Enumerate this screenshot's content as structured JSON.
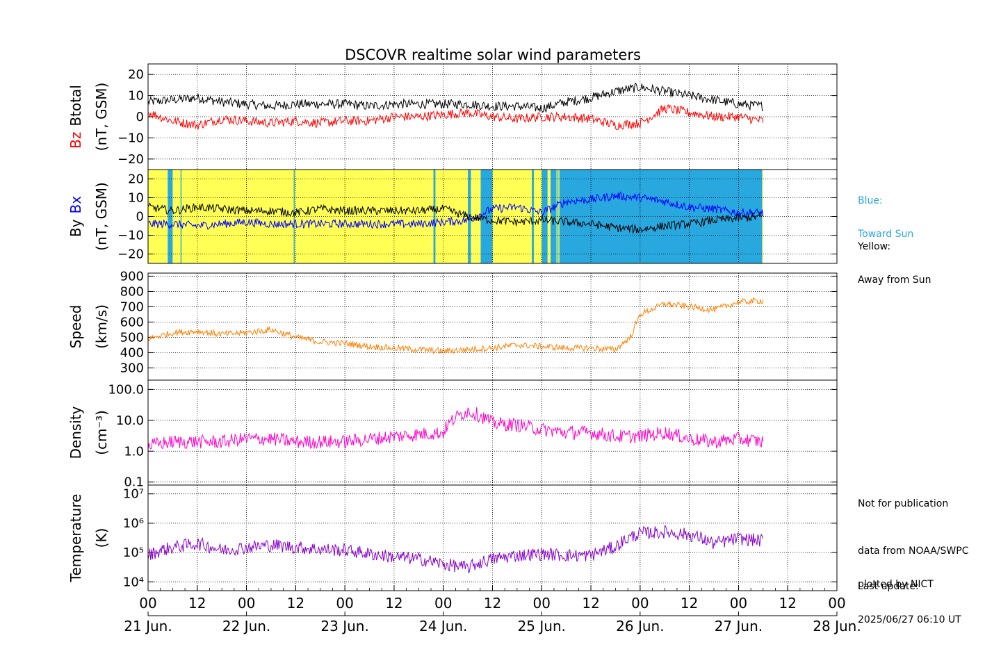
{
  "chart_data": {
    "type": "line",
    "title": "DSCOVR realtime solar wind parameters",
    "x_axis": {
      "hour_ticks": [
        "00",
        "12",
        "00",
        "12",
        "00",
        "12",
        "00",
        "12",
        "00",
        "12",
        "00",
        "12",
        "00",
        "12",
        "00"
      ],
      "date_labels": [
        "21 Jun.",
        "22 Jun.",
        "23 Jun.",
        "24 Jun.",
        "25 Jun.",
        "26 Jun.",
        "27 Jun.",
        "28 Jun."
      ],
      "range_days": [
        0,
        7
      ],
      "data_end_day": 6.25
    },
    "panels": [
      {
        "id": "mag",
        "ylabel_parts": [
          {
            "text": "Bz",
            "color": "#ff0000"
          },
          {
            "text": "Btotal",
            "color": "#000000"
          }
        ],
        "yunits": "(nT, GSM)",
        "ylim": [
          -25,
          25
        ],
        "ticks": [
          "20",
          "10",
          "0",
          "−10",
          "−20"
        ],
        "series": [
          {
            "name": "Btotal",
            "color": "#000000",
            "x": [
              0,
              0.25,
              0.5,
              0.75,
              1,
              1.25,
              1.5,
              1.75,
              2,
              2.25,
              2.5,
              2.75,
              3,
              3.25,
              3.5,
              3.75,
              4,
              4.25,
              4.5,
              4.75,
              5,
              5.25,
              5.5,
              5.75,
              6,
              6.25
            ],
            "y": [
              7,
              8,
              9,
              7,
              6,
              5,
              6,
              6,
              6,
              5,
              6,
              6,
              6,
              6,
              5,
              5,
              4,
              7,
              9,
              12,
              14,
              12,
              10,
              8,
              6,
              5
            ]
          },
          {
            "name": "Bz",
            "color": "#ff0000",
            "x": [
              0,
              0.25,
              0.5,
              0.75,
              1,
              1.25,
              1.5,
              1.75,
              2,
              2.25,
              2.5,
              2.75,
              3,
              3.25,
              3.5,
              3.75,
              4,
              4.25,
              4.5,
              4.75,
              5,
              5.25,
              5.5,
              5.75,
              6,
              6.25
            ],
            "y": [
              2,
              -2,
              -4,
              -1,
              -2,
              -3,
              -2,
              -3,
              -2,
              -2,
              0,
              0,
              1,
              2,
              0,
              -1,
              0,
              0,
              -1,
              -4,
              -3,
              4,
              2,
              0,
              0,
              -2
            ]
          }
        ]
      },
      {
        "id": "imf",
        "ylabel_parts": [
          {
            "text": "By",
            "color": "#000000"
          },
          {
            "text": "Bx",
            "color": "#0000ff"
          }
        ],
        "yunits": "(nT, GSM)",
        "ylim": [
          -25,
          25
        ],
        "ticks": [
          "20",
          "10",
          "0",
          "−10",
          "−20"
        ],
        "sector_background": {
          "toward_color": "#29a7df",
          "away_color": "#ffff55",
          "toward_intervals": [
            [
              0.2,
              0.25
            ],
            [
              0.33,
              0.34
            ],
            [
              1.48,
              1.49
            ],
            [
              2.9,
              2.92
            ],
            [
              3.25,
              3.28
            ],
            [
              3.38,
              3.5
            ],
            [
              3.9,
              3.92
            ],
            [
              4.0,
              4.06
            ],
            [
              4.09,
              4.18
            ],
            [
              4.1,
              6.24
            ]
          ],
          "away_intervals_inside_toward": [
            [
              3.92,
              4.0
            ],
            [
              4.06,
              4.09
            ],
            [
              4.15,
              4.16
            ],
            [
              4.17,
              4.18
            ]
          ]
        },
        "series": [
          {
            "name": "Bx",
            "color": "#0000ff",
            "x": [
              0,
              0.25,
              0.5,
              0.75,
              1,
              1.25,
              1.5,
              1.75,
              2,
              2.25,
              2.5,
              2.75,
              3,
              3.25,
              3.5,
              3.75,
              4,
              4.25,
              4.5,
              4.75,
              5,
              5.25,
              5.5,
              5.75,
              6,
              6.25
            ],
            "y": [
              -4,
              -4,
              -5,
              -4,
              -3,
              -4,
              -4,
              -4,
              -4,
              -4,
              -4,
              -4,
              -3,
              -2,
              4,
              5,
              2,
              8,
              9,
              11,
              10,
              8,
              5,
              4,
              2,
              2
            ]
          },
          {
            "name": "By",
            "color": "#000000",
            "x": [
              0,
              0.25,
              0.5,
              0.75,
              1,
              1.25,
              1.5,
              1.75,
              2,
              2.25,
              2.5,
              2.75,
              3,
              3.25,
              3.5,
              3.75,
              4,
              4.25,
              4.5,
              4.75,
              5,
              5.25,
              5.5,
              5.75,
              6,
              6.25
            ],
            "y": [
              5,
              3,
              5,
              4,
              3,
              3,
              2,
              4,
              3,
              3,
              3,
              3,
              4,
              0,
              -2,
              -3,
              -2,
              -3,
              -4,
              -6,
              -7,
              -5,
              -4,
              -2,
              -1,
              0
            ]
          }
        ]
      },
      {
        "id": "speed",
        "ylabel": "Speed",
        "yunits": "(km/s)",
        "ylim": [
          220,
          920
        ],
        "ticks": [
          "900",
          "800",
          "700",
          "600",
          "500",
          "400",
          "300"
        ],
        "series": [
          {
            "name": "Speed",
            "color": "#ff8000",
            "x": [
              0,
              0.25,
              0.5,
              0.75,
              1,
              1.25,
              1.5,
              1.75,
              2,
              2.25,
              2.5,
              2.75,
              3,
              3.25,
              3.5,
              3.75,
              4,
              4.25,
              4.5,
              4.75,
              4.9,
              5,
              5.25,
              5.5,
              5.75,
              6,
              6.25
            ],
            "y": [
              490,
              530,
              540,
              520,
              530,
              550,
              500,
              470,
              460,
              440,
              430,
              420,
              410,
              420,
              430,
              450,
              440,
              430,
              430,
              420,
              500,
              650,
              720,
              700,
              680,
              730,
              740
            ]
          }
        ]
      },
      {
        "id": "density",
        "ylabel": "Density",
        "yunits": "(cm⁻³)",
        "log": true,
        "ylim": [
          0.08,
          200
        ],
        "ticks": [
          "100.0",
          "10.0",
          "1.0",
          "0.1"
        ],
        "series": [
          {
            "name": "Density",
            "color": "#ff00cc",
            "x": [
              0,
              0.25,
              0.5,
              0.75,
              1,
              1.25,
              1.5,
              1.75,
              2,
              2.25,
              2.5,
              2.75,
              3,
              3.25,
              3.5,
              3.75,
              4,
              4.25,
              4.5,
              4.75,
              5,
              5.25,
              5.5,
              5.75,
              6,
              6.25
            ],
            "y": [
              1.5,
              2,
              2,
              2,
              2.5,
              2.5,
              2,
              2,
              2,
              2.5,
              3,
              3.5,
              4,
              20,
              8,
              7,
              5,
              4,
              4,
              3,
              3,
              4,
              2.5,
              2,
              2.5,
              2
            ]
          }
        ]
      },
      {
        "id": "temperature",
        "ylabel": "Temperature",
        "yunits": "(K)",
        "log": true,
        "ylim": [
          5000,
          20000000
        ],
        "ticks": [
          "10⁷",
          "10⁶",
          "10⁵",
          "10⁴"
        ],
        "series": [
          {
            "name": "Temperature",
            "color": "#8800cc",
            "x": [
              0,
              0.25,
              0.5,
              0.75,
              1,
              1.25,
              1.5,
              1.75,
              2,
              2.25,
              2.5,
              2.75,
              3,
              3.25,
              3.5,
              3.75,
              4,
              4.25,
              4.5,
              4.75,
              5,
              5.25,
              5.5,
              5.75,
              6,
              6.25
            ],
            "y": [
              80000,
              150000,
              200000,
              120000,
              150000,
              180000,
              150000,
              130000,
              120000,
              90000,
              70000,
              60000,
              40000,
              30000,
              60000,
              80000,
              90000,
              80000,
              80000,
              150000,
              450000,
              500000,
              400000,
              200000,
              300000,
              250000
            ]
          }
        ]
      }
    ]
  },
  "legend_notes": {
    "blue_line1": "Blue:",
    "blue_line2": "Toward Sun",
    "yellow_line1": "Yellow:",
    "yellow_line2": "Away from Sun",
    "blue_color": "#29a7df"
  },
  "footer_notes": {
    "not_for_pub": "Not for publication",
    "data_from": "data from NOAA/SWPC",
    "plotted_by": "plotted by NICT",
    "last_update_label": "Last update:",
    "last_update_value": "2025/06/27 06:10 UT"
  }
}
